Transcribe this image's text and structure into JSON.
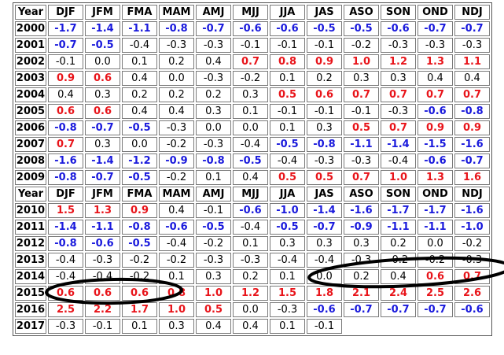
{
  "colors": {
    "warm": "#e8141a",
    "cool": "#1a1adc",
    "neutral": "#000000",
    "annotation": "#000000"
  },
  "header": [
    "Year",
    "DJF",
    "JFM",
    "FMA",
    "MAM",
    "AMJ",
    "MJJ",
    "JJA",
    "JAS",
    "ASO",
    "SON",
    "OND",
    "NDJ"
  ],
  "rows": [
    {
      "year": "2000",
      "values": [
        "-1.7",
        "-1.4",
        "-1.1",
        "-0.8",
        "-0.7",
        "-0.6",
        "-0.6",
        "-0.5",
        "-0.5",
        "-0.6",
        "-0.7",
        "-0.7"
      ],
      "states": [
        "c",
        "c",
        "c",
        "c",
        "c",
        "c",
        "c",
        "c",
        "c",
        "c",
        "c",
        "c"
      ]
    },
    {
      "year": "2001",
      "values": [
        "-0.7",
        "-0.5",
        "-0.4",
        "-0.3",
        "-0.3",
        "-0.1",
        "-0.1",
        "-0.1",
        "-0.2",
        "-0.3",
        "-0.3",
        "-0.3"
      ],
      "states": [
        "c",
        "c",
        "n",
        "n",
        "n",
        "n",
        "n",
        "n",
        "n",
        "n",
        "n",
        "n"
      ]
    },
    {
      "year": "2002",
      "values": [
        "-0.1",
        "0.0",
        "0.1",
        "0.2",
        "0.4",
        "0.7",
        "0.8",
        "0.9",
        "1.0",
        "1.2",
        "1.3",
        "1.1"
      ],
      "states": [
        "n",
        "n",
        "n",
        "n",
        "n",
        "w",
        "w",
        "w",
        "w",
        "w",
        "w",
        "w"
      ]
    },
    {
      "year": "2003",
      "values": [
        "0.9",
        "0.6",
        "0.4",
        "0.0",
        "-0.3",
        "-0.2",
        "0.1",
        "0.2",
        "0.3",
        "0.3",
        "0.4",
        "0.4"
      ],
      "states": [
        "w",
        "w",
        "n",
        "n",
        "n",
        "n",
        "n",
        "n",
        "n",
        "n",
        "n",
        "n"
      ]
    },
    {
      "year": "2004",
      "values": [
        "0.4",
        "0.3",
        "0.2",
        "0.2",
        "0.2",
        "0.3",
        "0.5",
        "0.6",
        "0.7",
        "0.7",
        "0.7",
        "0.7"
      ],
      "states": [
        "n",
        "n",
        "n",
        "n",
        "n",
        "n",
        "w",
        "w",
        "w",
        "w",
        "w",
        "w"
      ]
    },
    {
      "year": "2005",
      "values": [
        "0.6",
        "0.6",
        "0.4",
        "0.4",
        "0.3",
        "0.1",
        "-0.1",
        "-0.1",
        "-0.1",
        "-0.3",
        "-0.6",
        "-0.8"
      ],
      "states": [
        "w",
        "w",
        "n",
        "n",
        "n",
        "n",
        "n",
        "n",
        "n",
        "n",
        "c",
        "c"
      ]
    },
    {
      "year": "2006",
      "values": [
        "-0.8",
        "-0.7",
        "-0.5",
        "-0.3",
        "0.0",
        "0.0",
        "0.1",
        "0.3",
        "0.5",
        "0.7",
        "0.9",
        "0.9"
      ],
      "states": [
        "c",
        "c",
        "c",
        "n",
        "n",
        "n",
        "n",
        "n",
        "w",
        "w",
        "w",
        "w"
      ]
    },
    {
      "year": "2007",
      "values": [
        "0.7",
        "0.3",
        "0.0",
        "-0.2",
        "-0.3",
        "-0.4",
        "-0.5",
        "-0.8",
        "-1.1",
        "-1.4",
        "-1.5",
        "-1.6"
      ],
      "states": [
        "w",
        "n",
        "n",
        "n",
        "n",
        "n",
        "c",
        "c",
        "c",
        "c",
        "c",
        "c"
      ]
    },
    {
      "year": "2008",
      "values": [
        "-1.6",
        "-1.4",
        "-1.2",
        "-0.9",
        "-0.8",
        "-0.5",
        "-0.4",
        "-0.3",
        "-0.3",
        "-0.4",
        "-0.6",
        "-0.7"
      ],
      "states": [
        "c",
        "c",
        "c",
        "c",
        "c",
        "c",
        "n",
        "n",
        "n",
        "n",
        "c",
        "c"
      ]
    },
    {
      "year": "2009",
      "values": [
        "-0.8",
        "-0.7",
        "-0.5",
        "-0.2",
        "0.1",
        "0.4",
        "0.5",
        "0.5",
        "0.7",
        "1.0",
        "1.3",
        "1.6"
      ],
      "states": [
        "c",
        "c",
        "c",
        "n",
        "n",
        "n",
        "w",
        "w",
        "w",
        "w",
        "w",
        "w"
      ]
    },
    {
      "header": true
    },
    {
      "year": "2010",
      "values": [
        "1.5",
        "1.3",
        "0.9",
        "0.4",
        "-0.1",
        "-0.6",
        "-1.0",
        "-1.4",
        "-1.6",
        "-1.7",
        "-1.7",
        "-1.6"
      ],
      "states": [
        "w",
        "w",
        "w",
        "n",
        "n",
        "c",
        "c",
        "c",
        "c",
        "c",
        "c",
        "c"
      ]
    },
    {
      "year": "2011",
      "values": [
        "-1.4",
        "-1.1",
        "-0.8",
        "-0.6",
        "-0.5",
        "-0.4",
        "-0.5",
        "-0.7",
        "-0.9",
        "-1.1",
        "-1.1",
        "-1.0"
      ],
      "states": [
        "c",
        "c",
        "c",
        "c",
        "c",
        "n",
        "c",
        "c",
        "c",
        "c",
        "c",
        "c"
      ]
    },
    {
      "year": "2012",
      "values": [
        "-0.8",
        "-0.6",
        "-0.5",
        "-0.4",
        "-0.2",
        "0.1",
        "0.3",
        "0.3",
        "0.3",
        "0.2",
        "0.0",
        "-0.2"
      ],
      "states": [
        "c",
        "c",
        "c",
        "n",
        "n",
        "n",
        "n",
        "n",
        "n",
        "n",
        "n",
        "n"
      ]
    },
    {
      "year": "2013",
      "values": [
        "-0.4",
        "-0.3",
        "-0.2",
        "-0.2",
        "-0.3",
        "-0.3",
        "-0.4",
        "-0.4",
        "-0.3",
        "-0.2",
        "-0.2",
        "-0.3"
      ],
      "states": [
        "n",
        "n",
        "n",
        "n",
        "n",
        "n",
        "n",
        "n",
        "n",
        "n",
        "n",
        "n"
      ]
    },
    {
      "year": "2014",
      "values": [
        "-0.4",
        "-0.4",
        "-0.2",
        "0.1",
        "0.3",
        "0.2",
        "0.1",
        "0.0",
        "0.2",
        "0.4",
        "0.6",
        "0.7"
      ],
      "states": [
        "n",
        "n",
        "n",
        "n",
        "n",
        "n",
        "n",
        "n",
        "n",
        "n",
        "w",
        "w"
      ]
    },
    {
      "year": "2015",
      "values": [
        "0.6",
        "0.6",
        "0.6",
        "0.8",
        "1.0",
        "1.2",
        "1.5",
        "1.8",
        "2.1",
        "2.4",
        "2.5",
        "2.6"
      ],
      "states": [
        "w",
        "w",
        "w",
        "w",
        "w",
        "w",
        "w",
        "w",
        "w",
        "w",
        "w",
        "w"
      ]
    },
    {
      "year": "2016",
      "values": [
        "2.5",
        "2.2",
        "1.7",
        "1.0",
        "0.5",
        "0.0",
        "-0.3",
        "-0.6",
        "-0.7",
        "-0.7",
        "-0.7",
        "-0.6"
      ],
      "states": [
        "w",
        "w",
        "w",
        "w",
        "w",
        "n",
        "n",
        "c",
        "c",
        "c",
        "c",
        "c"
      ]
    },
    {
      "year": "2017",
      "values": [
        "-0.3",
        "-0.1",
        "0.1",
        "0.3",
        "0.4",
        "0.4",
        "0.1",
        "-0.1"
      ],
      "states": [
        "n",
        "n",
        "n",
        "n",
        "n",
        "n",
        "n",
        "n"
      ]
    }
  ],
  "annotations": [
    "hand-drawn-oval-2014-djf-fma",
    "hand-drawn-oval-2013-jas-ndj"
  ]
}
